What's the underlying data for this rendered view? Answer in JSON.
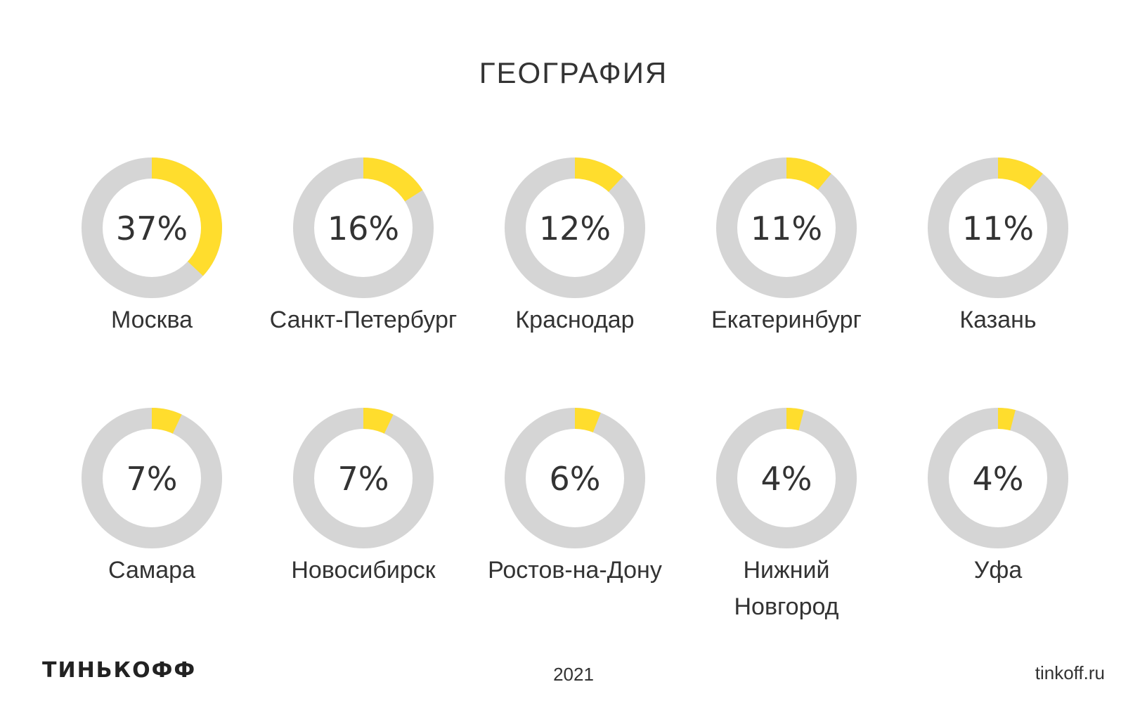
{
  "title": "ГЕОГРАФИЯ",
  "colors": {
    "filled": "#ffdd2d",
    "track": "#d5d5d5",
    "text": "#333333"
  },
  "chart_data": {
    "type": "pie",
    "style": "donut",
    "total": 100,
    "items": [
      {
        "label": [
          "Москва"
        ],
        "value": 37,
        "value_label": "37%"
      },
      {
        "label": [
          "Санкт-Петербург"
        ],
        "value": 16,
        "value_label": "16%"
      },
      {
        "label": [
          "Краснодар"
        ],
        "value": 12,
        "value_label": "12%"
      },
      {
        "label": [
          "Екатеринбург"
        ],
        "value": 11,
        "value_label": "11%"
      },
      {
        "label": [
          "Казань"
        ],
        "value": 11,
        "value_label": "11%"
      },
      {
        "label": [
          "Самара"
        ],
        "value": 7,
        "value_label": "7%"
      },
      {
        "label": [
          "Новосибирск"
        ],
        "value": 7,
        "value_label": "7%"
      },
      {
        "label": [
          "Ростов-на-Дону"
        ],
        "value": 6,
        "value_label": "6%"
      },
      {
        "label": [
          "Нижний",
          "Новгород"
        ],
        "value": 4,
        "value_label": "4%"
      },
      {
        "label": [
          "Уфа"
        ],
        "value": 4,
        "value_label": "4%"
      }
    ]
  },
  "footer": {
    "logo": "ТИНЬКОФФ",
    "year": "2021",
    "site": "tinkoff.ru"
  }
}
